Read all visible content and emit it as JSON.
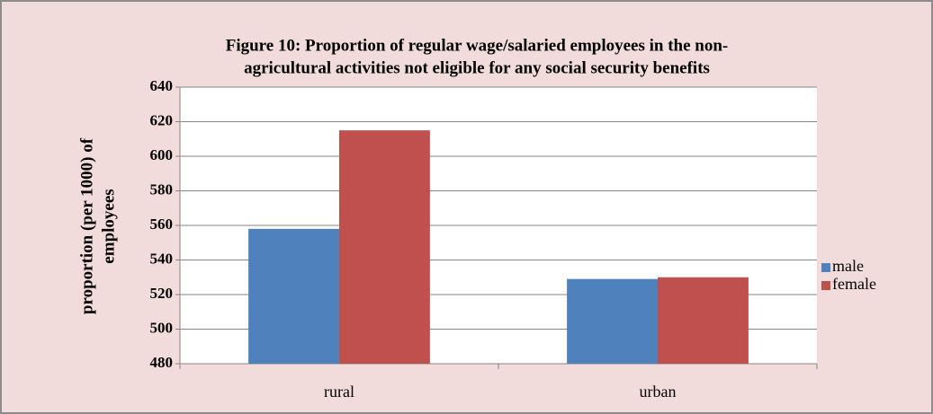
{
  "chart_data": {
    "type": "bar",
    "title": [
      "Figure 10: Proportion of regular wage/salaried employees in the non-",
      "agricultural activities not eligible for any social security benefits"
    ],
    "y_label": [
      "proportion (per 1000) of",
      "employees"
    ],
    "categories": [
      "rural",
      "urban"
    ],
    "series": [
      {
        "name": "male",
        "color": "#4f81bd",
        "values": [
          558,
          529
        ]
      },
      {
        "name": "female",
        "color": "#c0504d",
        "values": [
          615,
          530
        ]
      }
    ],
    "ylim": [
      480,
      640
    ],
    "yticks": [
      480,
      500,
      520,
      540,
      560,
      580,
      600,
      620,
      640
    ],
    "grid": true,
    "legend": "right"
  }
}
